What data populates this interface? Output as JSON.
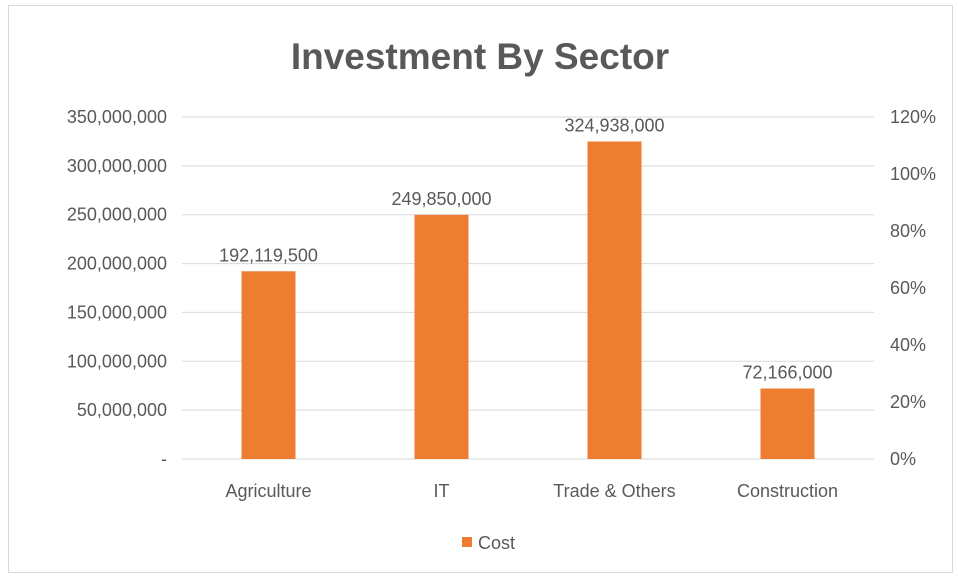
{
  "chart_data": {
    "type": "bar",
    "title": "Investment By Sector",
    "categories": [
      "Agriculture",
      "IT",
      "Trade & Others",
      "Construction"
    ],
    "series": [
      {
        "name": "Cost",
        "values": [
          192119500,
          249850000,
          324938000,
          72166000
        ],
        "color": "#ED7D31"
      }
    ],
    "data_labels": [
      "192,119,500",
      "249,850,000",
      "324,938,000",
      "72,166,000"
    ],
    "y_left": {
      "ylim": [
        0,
        350000000
      ],
      "ticks": [
        0,
        50000000,
        100000000,
        150000000,
        200000000,
        250000000,
        300000000,
        350000000
      ],
      "tick_labels": [
        "-",
        "50,000,000",
        "100,000,000",
        "150,000,000",
        "200,000,000",
        "250,000,000",
        "300,000,000",
        "350,000,000"
      ]
    },
    "y_right": {
      "ylim": [
        0,
        1.2
      ],
      "tick_labels": [
        "0%",
        "20%",
        "40%",
        "60%",
        "80%",
        "100%",
        "120%"
      ]
    },
    "grid": true,
    "legend": {
      "position": "bottom",
      "label": "Cost"
    }
  }
}
